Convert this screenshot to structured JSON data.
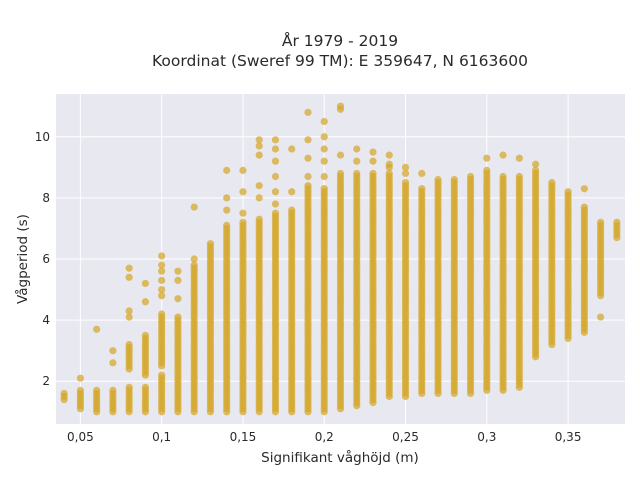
{
  "chart_data": {
    "type": "scatter",
    "title": "År 1979 - 2019",
    "subtitle": "Koordinat (Sweref 99 TM): E 359647, N 6163600",
    "xlabel": "Signifikant våghöjd (m)",
    "ylabel": "Vågperiod (s)",
    "xlim": [
      0.035,
      0.385
    ],
    "ylim": [
      0.6,
      11.4
    ],
    "x_ticks": [
      0.05,
      0.1,
      0.15,
      0.2,
      0.25,
      0.3,
      0.35
    ],
    "x_tick_labels": [
      "0,05",
      "0,1",
      "0,15",
      "0,2",
      "0,25",
      "0,3",
      "0,35"
    ],
    "y_ticks": [
      2,
      4,
      6,
      8,
      10
    ],
    "y_tick_labels": [
      "2",
      "4",
      "6",
      "8",
      "10"
    ],
    "grid": true,
    "background": "#e8e8f0",
    "marker_color": "#d4a628",
    "columns": [
      {
        "x": 0.04,
        "ranges": [
          [
            1.4,
            1.6
          ]
        ]
      },
      {
        "x": 0.05,
        "ranges": [
          [
            1.1,
            1.7
          ]
        ],
        "extra": [
          2.1
        ]
      },
      {
        "x": 0.06,
        "ranges": [
          [
            1.0,
            1.7
          ]
        ],
        "extra": [
          3.7
        ]
      },
      {
        "x": 0.07,
        "ranges": [
          [
            1.0,
            1.7
          ]
        ],
        "extra": [
          2.6,
          3.0
        ]
      },
      {
        "x": 0.08,
        "ranges": [
          [
            1.0,
            1.8
          ],
          [
            2.4,
            3.2
          ]
        ],
        "extra": [
          4.1,
          4.3,
          5.4,
          5.7
        ]
      },
      {
        "x": 0.09,
        "ranges": [
          [
            1.0,
            1.8
          ],
          [
            2.2,
            3.5
          ]
        ],
        "extra": [
          4.6,
          5.2
        ]
      },
      {
        "x": 0.1,
        "ranges": [
          [
            1.0,
            2.2
          ],
          [
            2.5,
            4.2
          ]
        ],
        "extra": [
          4.8,
          5.0,
          5.3,
          5.6,
          5.8,
          6.1
        ]
      },
      {
        "x": 0.11,
        "ranges": [
          [
            1.0,
            4.1
          ]
        ],
        "extra": [
          4.7,
          5.3,
          5.6
        ]
      },
      {
        "x": 0.12,
        "ranges": [
          [
            1.0,
            5.8
          ]
        ],
        "extra": [
          6.0,
          7.7
        ]
      },
      {
        "x": 0.13,
        "ranges": [
          [
            1.0,
            6.5
          ]
        ]
      },
      {
        "x": 0.14,
        "ranges": [
          [
            1.0,
            7.1
          ]
        ],
        "extra": [
          7.6,
          8.0,
          8.9
        ]
      },
      {
        "x": 0.15,
        "ranges": [
          [
            1.0,
            7.2
          ]
        ],
        "extra": [
          7.5,
          8.2,
          8.9
        ]
      },
      {
        "x": 0.16,
        "ranges": [
          [
            1.0,
            7.3
          ]
        ],
        "extra": [
          8.0,
          8.4,
          9.4,
          9.7,
          9.9
        ]
      },
      {
        "x": 0.17,
        "ranges": [
          [
            1.0,
            7.5
          ]
        ],
        "extra": [
          7.8,
          8.2,
          8.7,
          9.2,
          9.6,
          9.9
        ]
      },
      {
        "x": 0.18,
        "ranges": [
          [
            1.0,
            7.6
          ]
        ],
        "extra": [
          8.2,
          9.6
        ]
      },
      {
        "x": 0.19,
        "ranges": [
          [
            1.0,
            8.4
          ]
        ],
        "extra": [
          8.7,
          9.3,
          9.9,
          10.8
        ]
      },
      {
        "x": 0.2,
        "ranges": [
          [
            1.0,
            8.3
          ]
        ],
        "extra": [
          8.7,
          9.2,
          9.6,
          10.0,
          10.5
        ]
      },
      {
        "x": 0.21,
        "ranges": [
          [
            1.1,
            8.8
          ]
        ],
        "extra": [
          9.4,
          10.9,
          11.0
        ]
      },
      {
        "x": 0.22,
        "ranges": [
          [
            1.2,
            8.8
          ]
        ],
        "extra": [
          9.2,
          9.6
        ]
      },
      {
        "x": 0.23,
        "ranges": [
          [
            1.3,
            8.8
          ]
        ],
        "extra": [
          9.2,
          9.5
        ]
      },
      {
        "x": 0.24,
        "ranges": [
          [
            1.5,
            8.8
          ]
        ],
        "extra": [
          9.0,
          9.1,
          9.4
        ]
      },
      {
        "x": 0.25,
        "ranges": [
          [
            1.5,
            8.5
          ]
        ],
        "extra": [
          8.8,
          9.0
        ]
      },
      {
        "x": 0.26,
        "ranges": [
          [
            1.6,
            8.3
          ]
        ],
        "extra": [
          8.8
        ]
      },
      {
        "x": 0.27,
        "ranges": [
          [
            1.6,
            8.6
          ]
        ]
      },
      {
        "x": 0.28,
        "ranges": [
          [
            1.6,
            8.6
          ]
        ]
      },
      {
        "x": 0.29,
        "ranges": [
          [
            1.6,
            8.7
          ]
        ]
      },
      {
        "x": 0.3,
        "ranges": [
          [
            1.7,
            8.9
          ]
        ],
        "extra": [
          9.3
        ]
      },
      {
        "x": 0.31,
        "ranges": [
          [
            1.7,
            8.7
          ]
        ],
        "extra": [
          9.4
        ]
      },
      {
        "x": 0.32,
        "ranges": [
          [
            1.8,
            8.7
          ]
        ],
        "extra": [
          9.3
        ]
      },
      {
        "x": 0.33,
        "ranges": [
          [
            2.8,
            8.9
          ]
        ],
        "extra": [
          9.1
        ]
      },
      {
        "x": 0.34,
        "ranges": [
          [
            3.2,
            8.5
          ]
        ]
      },
      {
        "x": 0.35,
        "ranges": [
          [
            3.4,
            8.2
          ]
        ]
      },
      {
        "x": 0.36,
        "ranges": [
          [
            3.6,
            7.7
          ]
        ],
        "extra": [
          8.3
        ]
      },
      {
        "x": 0.37,
        "ranges": [
          [
            4.8,
            7.2
          ]
        ],
        "extra": [
          4.1
        ]
      },
      {
        "x": 0.38,
        "ranges": [
          [
            6.7,
            7.2
          ]
        ]
      }
    ]
  }
}
